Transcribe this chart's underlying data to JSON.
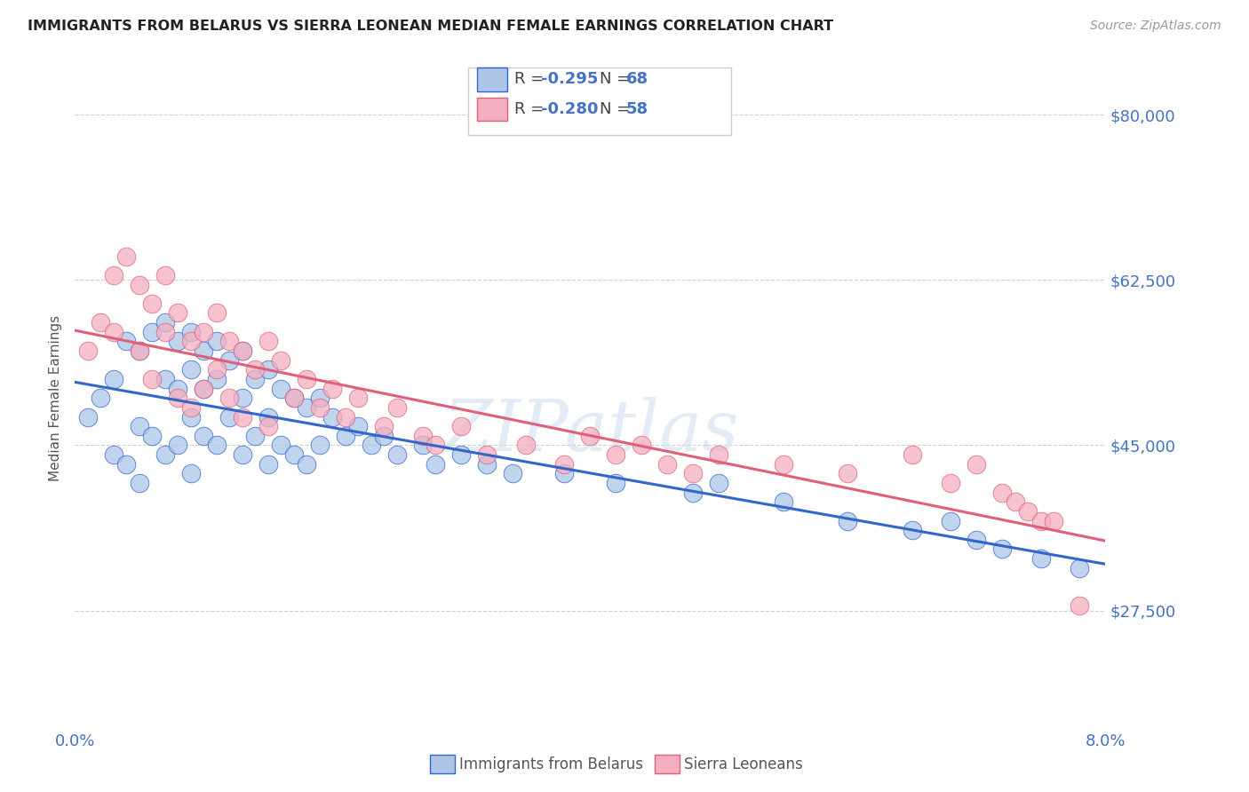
{
  "title": "IMMIGRANTS FROM BELARUS VS SIERRA LEONEAN MEDIAN FEMALE EARNINGS CORRELATION CHART",
  "source": "Source: ZipAtlas.com",
  "ylabel": "Median Female Earnings",
  "xlim": [
    0.0,
    0.08
  ],
  "ylim": [
    15000,
    85000
  ],
  "yticks": [
    27500,
    45000,
    62500,
    80000
  ],
  "ytick_labels": [
    "$27,500",
    "$45,000",
    "$62,500",
    "$80,000"
  ],
  "legend_r1": "-0.295",
  "legend_n1": "68",
  "legend_r2": "-0.280",
  "legend_n2": "58",
  "series1_label": "Immigrants from Belarus",
  "series2_label": "Sierra Leoneans",
  "series1_color": "#adc6e8",
  "series2_color": "#f5afc0",
  "series1_line_color": "#3366cc",
  "series2_line_color": "#e0607a",
  "title_color": "#222222",
  "axis_tick_color": "#4472c4",
  "watermark": "ZIPatlas",
  "background_color": "#ffffff",
  "scatter1_x": [
    0.001,
    0.002,
    0.003,
    0.003,
    0.004,
    0.004,
    0.005,
    0.005,
    0.005,
    0.006,
    0.006,
    0.007,
    0.007,
    0.007,
    0.008,
    0.008,
    0.008,
    0.009,
    0.009,
    0.009,
    0.009,
    0.01,
    0.01,
    0.01,
    0.011,
    0.011,
    0.011,
    0.012,
    0.012,
    0.013,
    0.013,
    0.013,
    0.014,
    0.014,
    0.015,
    0.015,
    0.015,
    0.016,
    0.016,
    0.017,
    0.017,
    0.018,
    0.018,
    0.019,
    0.019,
    0.02,
    0.021,
    0.022,
    0.023,
    0.024,
    0.025,
    0.027,
    0.028,
    0.03,
    0.032,
    0.034,
    0.038,
    0.042,
    0.048,
    0.05,
    0.055,
    0.06,
    0.065,
    0.068,
    0.07,
    0.072,
    0.075,
    0.078
  ],
  "scatter1_y": [
    48000,
    50000,
    52000,
    44000,
    56000,
    43000,
    55000,
    47000,
    41000,
    57000,
    46000,
    58000,
    52000,
    44000,
    56000,
    51000,
    45000,
    57000,
    53000,
    48000,
    42000,
    55000,
    51000,
    46000,
    56000,
    52000,
    45000,
    54000,
    48000,
    55000,
    50000,
    44000,
    52000,
    46000,
    53000,
    48000,
    43000,
    51000,
    45000,
    50000,
    44000,
    49000,
    43000,
    50000,
    45000,
    48000,
    46000,
    47000,
    45000,
    46000,
    44000,
    45000,
    43000,
    44000,
    43000,
    42000,
    42000,
    41000,
    40000,
    41000,
    39000,
    37000,
    36000,
    37000,
    35000,
    34000,
    33000,
    32000
  ],
  "scatter2_x": [
    0.001,
    0.002,
    0.003,
    0.003,
    0.004,
    0.005,
    0.005,
    0.006,
    0.006,
    0.007,
    0.007,
    0.008,
    0.008,
    0.009,
    0.009,
    0.01,
    0.01,
    0.011,
    0.011,
    0.012,
    0.012,
    0.013,
    0.013,
    0.014,
    0.015,
    0.015,
    0.016,
    0.017,
    0.018,
    0.019,
    0.02,
    0.021,
    0.022,
    0.024,
    0.025,
    0.027,
    0.028,
    0.03,
    0.032,
    0.035,
    0.038,
    0.04,
    0.042,
    0.044,
    0.046,
    0.048,
    0.05,
    0.055,
    0.06,
    0.065,
    0.068,
    0.07,
    0.072,
    0.073,
    0.074,
    0.075,
    0.076,
    0.078
  ],
  "scatter2_y": [
    55000,
    58000,
    63000,
    57000,
    65000,
    62000,
    55000,
    60000,
    52000,
    63000,
    57000,
    59000,
    50000,
    56000,
    49000,
    57000,
    51000,
    59000,
    53000,
    56000,
    50000,
    55000,
    48000,
    53000,
    56000,
    47000,
    54000,
    50000,
    52000,
    49000,
    51000,
    48000,
    50000,
    47000,
    49000,
    46000,
    45000,
    47000,
    44000,
    45000,
    43000,
    46000,
    44000,
    45000,
    43000,
    42000,
    44000,
    43000,
    42000,
    44000,
    41000,
    43000,
    40000,
    39000,
    38000,
    37000,
    37000,
    28000
  ]
}
